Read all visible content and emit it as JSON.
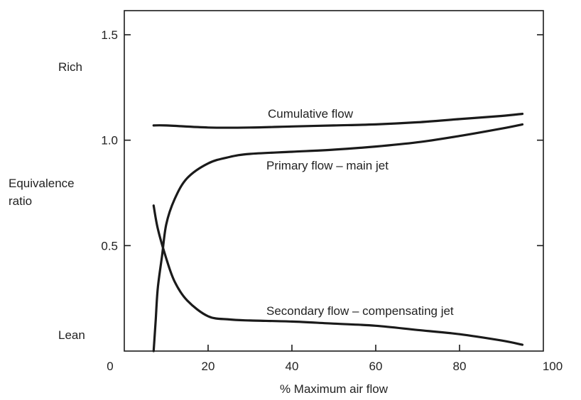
{
  "chart_data": {
    "type": "line",
    "title": "",
    "xlabel": "% Maximum air flow",
    "ylabel_lines": [
      "Equivalence",
      "ratio"
    ],
    "xlim": [
      0,
      100
    ],
    "ylim": [
      0,
      1.5
    ],
    "x_ticks": [
      0,
      20,
      40,
      60,
      80,
      100
    ],
    "x_tick_labels": [
      "0",
      "20",
      "40",
      "60",
      "80",
      "100"
    ],
    "y_ticks": [
      0.5,
      1.0,
      1.5
    ],
    "y_tick_labels": [
      "0.5",
      "1.0",
      "1.5"
    ],
    "y_side_labels": {
      "rich": "Rich",
      "lean": "Lean"
    },
    "grid": false,
    "series": [
      {
        "name": "Cumulative flow",
        "x": [
          7,
          10,
          20,
          30,
          40,
          50,
          60,
          70,
          80,
          90,
          95
        ],
        "y": [
          1.07,
          1.07,
          1.06,
          1.06,
          1.065,
          1.07,
          1.075,
          1.085,
          1.1,
          1.115,
          1.125
        ]
      },
      {
        "name": "Primary flow – main jet",
        "x": [
          7,
          7.5,
          8,
          9,
          10,
          12,
          15,
          20,
          25,
          30,
          40,
          50,
          60,
          70,
          80,
          90,
          95
        ],
        "y": [
          0.0,
          0.15,
          0.3,
          0.45,
          0.6,
          0.72,
          0.82,
          0.89,
          0.92,
          0.935,
          0.945,
          0.955,
          0.97,
          0.99,
          1.02,
          1.055,
          1.075
        ]
      },
      {
        "name": "Secondary flow – compensating jet",
        "x": [
          7,
          8,
          10,
          12,
          15,
          20,
          25,
          30,
          40,
          50,
          60,
          70,
          80,
          90,
          95
        ],
        "y": [
          0.69,
          0.58,
          0.44,
          0.33,
          0.24,
          0.165,
          0.15,
          0.145,
          0.14,
          0.13,
          0.12,
          0.1,
          0.08,
          0.05,
          0.03
        ]
      }
    ]
  }
}
